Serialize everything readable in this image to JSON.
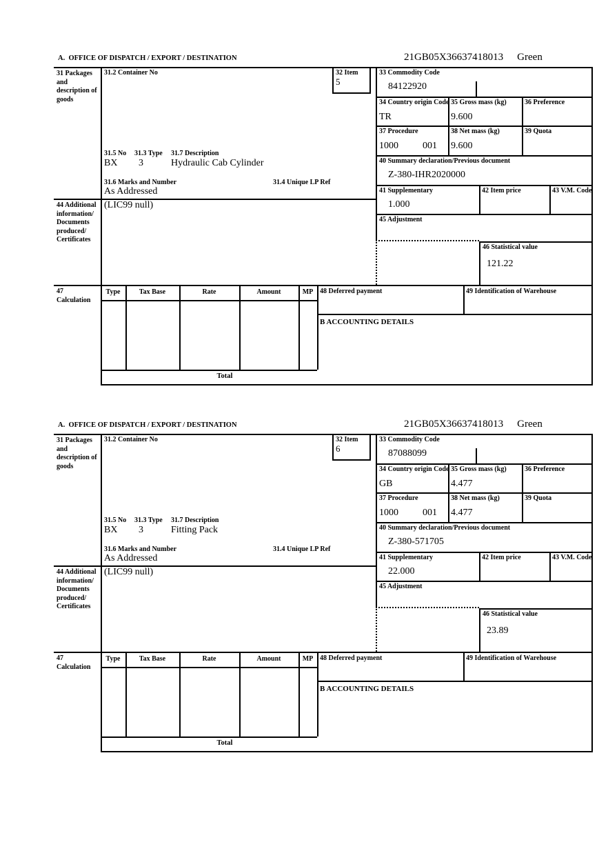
{
  "document": {
    "section_header": "A.  OFFICE OF DISPATCH / EXPORT / DESTINATION",
    "mrn": "21GB05X36637418013",
    "routing_status": "Green"
  },
  "labels": {
    "box31": "31 Packages and description of goods",
    "box31_2": "31.2 Container No",
    "box32": "32 Item",
    "box33": "33 Commodity Code",
    "box34": "34 Country origin Code",
    "box35": "35 Gross mass (kg)",
    "box36": "36 Preference",
    "box37": "37 Procedure",
    "box38": "38 Net mass (kg)",
    "box39": "39 Quota",
    "box40": "40 Summary declaration/Previous document",
    "box41": "41 Supplementary",
    "box42": "42 Item price",
    "box43": "43 V.M. Code",
    "box44": "44 Additional information/ Documents produced/ Certificates",
    "box45": "45 Adjustment",
    "box46": "46 Statistical value",
    "box47": "47 Calculation",
    "box48": "48 Deferred payment",
    "box49": "49 Identification of Warehouse",
    "box31_5": "31.5 No",
    "box31_3": "31.3 Type",
    "box31_7": "31.7 Description",
    "box31_6": "31.6 Marks and Number",
    "box31_4": "31.4 Unique LP Ref",
    "calc_type": "Type",
    "calc_tax_base": "Tax Base",
    "calc_rate": "Rate",
    "calc_amount": "Amount",
    "calc_mp": "MP",
    "accounting_details": "B ACCOUNTING DETAILS",
    "total": "Total"
  },
  "items": [
    {
      "item_no": "5",
      "commodity_code": "84122920",
      "country_origin_code": "TR",
      "gross_mass_kg": "9.600",
      "net_mass_kg": "9.600",
      "procedure_code": "1000",
      "procedure_code_2": "001",
      "previous_document": "Z-380-IHR2020000",
      "supplementary_units": "1.000",
      "statistical_value": "121.22",
      "package_kind": "BX",
      "package_type": "3",
      "goods_description": "Hydraulic Cab Cylinder",
      "marks_and_numbers": "As Addressed",
      "additional_information": "(LIC99 null)"
    },
    {
      "item_no": "6",
      "commodity_code": "87088099",
      "country_origin_code": "GB",
      "gross_mass_kg": "4.477",
      "net_mass_kg": "4.477",
      "procedure_code": "1000",
      "procedure_code_2": "001",
      "previous_document": "Z-380-571705",
      "supplementary_units": "22.000",
      "statistical_value": "23.89",
      "package_kind": "BX",
      "package_type": "3",
      "goods_description": "Fitting Pack",
      "marks_and_numbers": "As Addressed",
      "additional_information": "(LIC99 null)"
    }
  ]
}
